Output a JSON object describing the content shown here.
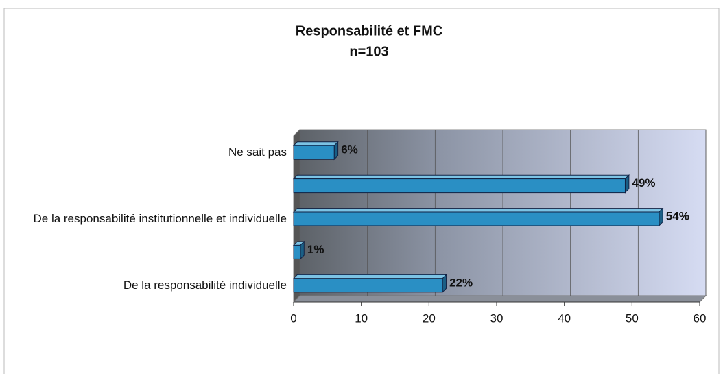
{
  "chart_data": {
    "type": "bar",
    "orientation": "horizontal",
    "title": "Responsabilité et FMC",
    "subtitle": "n=103",
    "categories": [
      "Ne sait pas",
      null,
      "De la responsabilité institutionnelle et individuelle",
      null,
      "De la responsabilité individuelle"
    ],
    "values": [
      6,
      49,
      54,
      1,
      22
    ],
    "value_labels": [
      "6%",
      "49%",
      "54%",
      "1%",
      "22%"
    ],
    "color": "#2a8fc4",
    "xlim": [
      0,
      60
    ],
    "xticks": [
      0,
      10,
      20,
      30,
      40,
      50,
      60
    ],
    "grid": true
  }
}
